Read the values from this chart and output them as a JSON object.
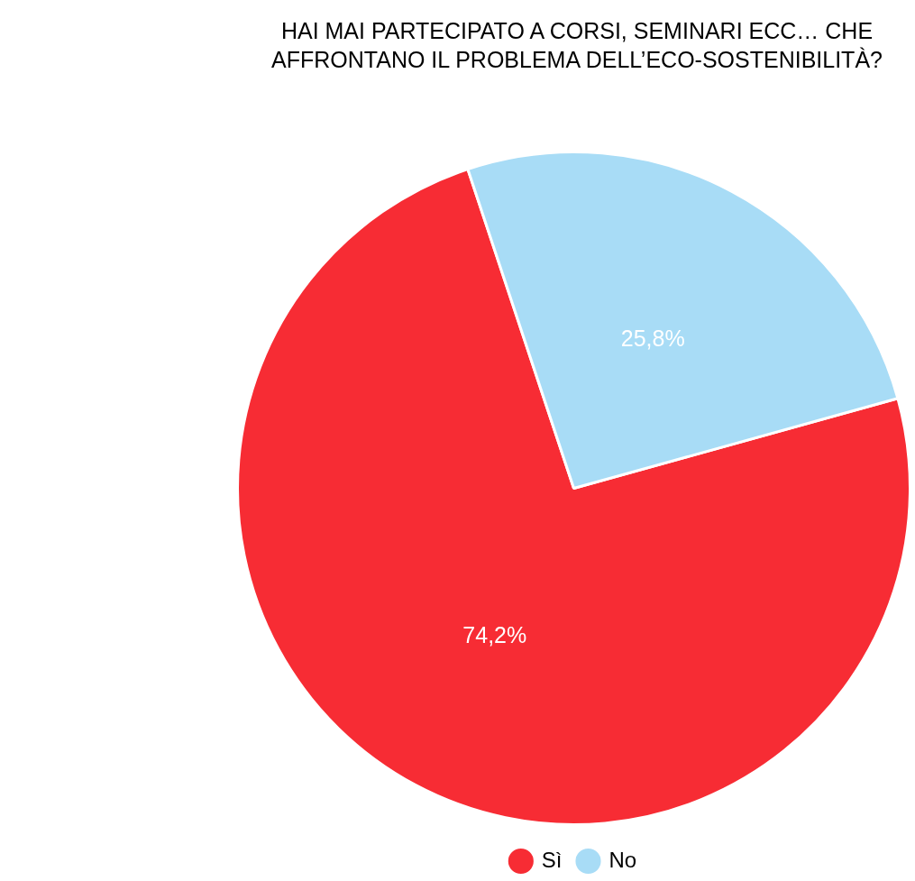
{
  "chart_data": {
    "type": "pie",
    "title": "HAI MAI PARTECIPATO A CORSI, SEMINARI ECC… CHE AFFRONTANO IL PROBLEMA DELL’ECO-SOSTENIBILITÀ?",
    "categories": [
      "Sì",
      "No"
    ],
    "values": [
      74.2,
      25.8
    ],
    "colors": [
      "#f72c34",
      "#a8dcf6"
    ],
    "value_labels": [
      "74,2%",
      "25,8%"
    ],
    "legend": "bottom"
  }
}
